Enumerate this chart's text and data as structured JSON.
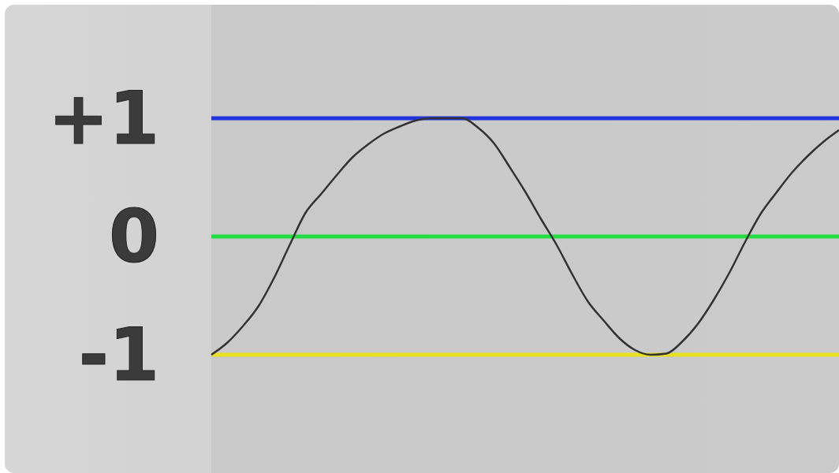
{
  "chart_data": {
    "type": "line",
    "categories": [
      null,
      null,
      null,
      null,
      null,
      null,
      null,
      null,
      null,
      null,
      null,
      null,
      null,
      null,
      null,
      null,
      null,
      null,
      null,
      null,
      null,
      null,
      null,
      null,
      null,
      null,
      null,
      null,
      null,
      null,
      null,
      null,
      null,
      null,
      null,
      null,
      null,
      null,
      null,
      null,
      null
    ],
    "series": [
      {
        "color": "#333333",
        "values": [
          -1,
          -0.9,
          -0.76,
          -0.59,
          -0.35,
          -0.07,
          0.2,
          0.36,
          0.52,
          0.67,
          0.78,
          0.87,
          0.93,
          0.98,
          1,
          1,
          1,
          0.92,
          0.79,
          0.59,
          0.38,
          0.15,
          -0.07,
          -0.32,
          -0.55,
          -0.71,
          -0.86,
          -0.96,
          -1,
          -0.99,
          -0.89,
          -0.74,
          -0.54,
          -0.31,
          -0.05,
          0.19,
          0.37,
          0.54,
          0.68,
          0.8,
          0.9
        ]
      }
    ],
    "ylim": [
      -2,
      2
    ],
    "yticks": [
      {
        "value": 1,
        "label": "+1"
      },
      0,
      -1
    ],
    "ref_lines": [
      {
        "axis": "y",
        "value": 1,
        "color": "#2233dd"
      },
      {
        "axis": "y",
        "value": 0,
        "color": "#22dd44"
      },
      {
        "axis": "y",
        "value": -1,
        "color": "#e6e020"
      }
    ],
    "tick_labels": "y",
    "grid": false,
    "legend": false,
    "marker": "none",
    "line_style": "solid"
  }
}
